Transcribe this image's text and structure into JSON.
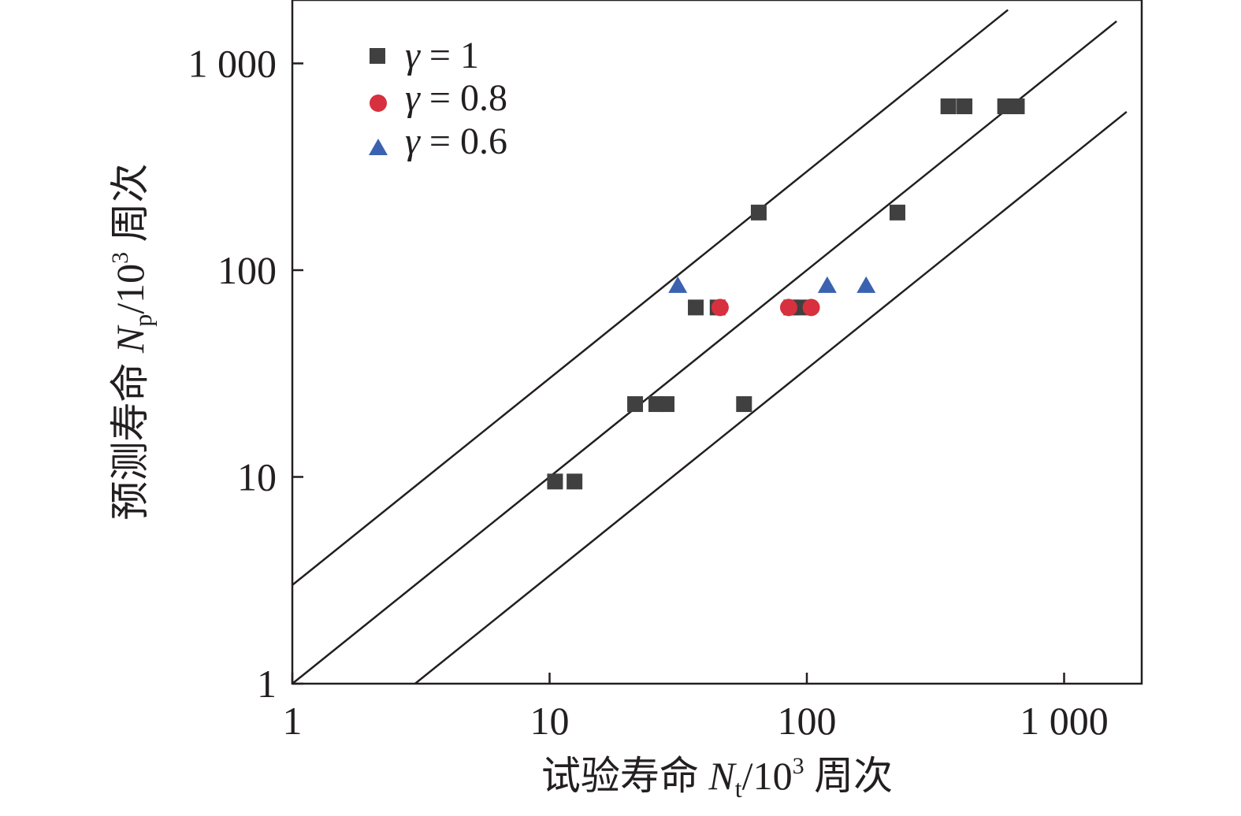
{
  "chart_data": {
    "type": "scatter",
    "x_scale": "log",
    "y_scale": "log",
    "xlim": [
      1,
      2000
    ],
    "ylim": [
      1,
      2000
    ],
    "xlabel": {
      "prefix": "试验寿命 ",
      "symbol": "N",
      "subscript": "t",
      "suffix": "/10",
      "superscript": "3",
      "unit": " 周次"
    },
    "ylabel": {
      "prefix": "预测寿命 ",
      "symbol": "N",
      "subscript": "p",
      "suffix": "/10",
      "superscript": "3",
      "unit": " 周次"
    },
    "x_ticks": [
      {
        "value": 1,
        "label": "1"
      },
      {
        "value": 10,
        "label": "10"
      },
      {
        "value": 100,
        "label": "100"
      },
      {
        "value": 1000,
        "label": "1 000"
      }
    ],
    "y_ticks": [
      {
        "value": 1,
        "label": "1"
      },
      {
        "value": 10,
        "label": "10"
      },
      {
        "value": 100,
        "label": "100"
      },
      {
        "value": 1000,
        "label": "1 000"
      }
    ],
    "legend_position": "top-left",
    "grid": false,
    "reference_lines": [
      {
        "factor": 3,
        "x_range": [
          1,
          605
        ]
      },
      {
        "factor": 1,
        "x_range": [
          1,
          1600
        ]
      },
      {
        "factor": 0.3333,
        "x_range": [
          3,
          1750
        ]
      }
    ],
    "series": [
      {
        "name": "γ = 1",
        "symbol": "γ",
        "value_text": " = 1",
        "marker": "square",
        "color": "#404041",
        "points": [
          [
            10.5,
            9.5
          ],
          [
            12.5,
            9.5
          ],
          [
            21.5,
            22.5
          ],
          [
            26,
            22.5
          ],
          [
            28.5,
            22.5
          ],
          [
            57,
            22.5
          ],
          [
            37,
            66
          ],
          [
            45,
            66
          ],
          [
            87,
            66
          ],
          [
            95,
            66
          ],
          [
            65,
            190
          ],
          [
            225,
            190
          ],
          [
            355,
            620
          ],
          [
            410,
            620
          ],
          [
            590,
            620
          ],
          [
            655,
            620
          ]
        ]
      },
      {
        "name": "γ = 0.8",
        "symbol": "γ",
        "value_text": " = 0.8",
        "marker": "circle",
        "color": "#d7303f",
        "points": [
          [
            46,
            66
          ],
          [
            85,
            66
          ],
          [
            104,
            66
          ]
        ]
      },
      {
        "name": "γ = 0.6",
        "symbol": "γ",
        "value_text": " = 0.6",
        "marker": "triangle",
        "color": "#3a62b0",
        "points": [
          [
            31.5,
            84
          ],
          [
            120,
            84
          ],
          [
            170,
            84
          ]
        ]
      }
    ]
  }
}
